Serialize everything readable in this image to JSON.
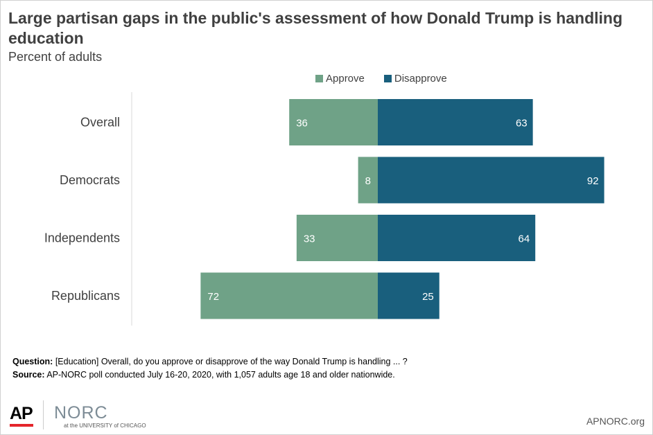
{
  "title": "Large partisan gaps in the public's assessment of how Donald Trump is handling education",
  "subtitle": "Percent of adults",
  "colors": {
    "approve": "#6fa287",
    "disapprove": "#195f7d",
    "axis": "#d9d9d9"
  },
  "chart_data": {
    "type": "bar",
    "orientation": "horizontal-diverging",
    "categories": [
      "Overall",
      "Democrats",
      "Independents",
      "Republicans"
    ],
    "series": [
      {
        "name": "Approve",
        "values": [
          36,
          8,
          33,
          72
        ],
        "direction": "left"
      },
      {
        "name": "Disapprove",
        "values": [
          63,
          92,
          64,
          25
        ],
        "direction": "right"
      }
    ],
    "data_labels": true,
    "legend": "top",
    "grid": false
  },
  "notes": {
    "question_label": "Question:",
    "question_text": " [Education] Overall, do you approve or disapprove of the way Donald Trump is handling ... ?",
    "source_label": "Source:",
    "source_text": " AP-NORC poll conducted July 16-20, 2020, with 1,057 adults age 18 and older nationwide."
  },
  "footer": {
    "ap_logo": "AP",
    "norc_logo": "NORC",
    "norc_subtitle": "at the UNIVERSITY of CHICAGO",
    "site": "APNORC.org"
  }
}
